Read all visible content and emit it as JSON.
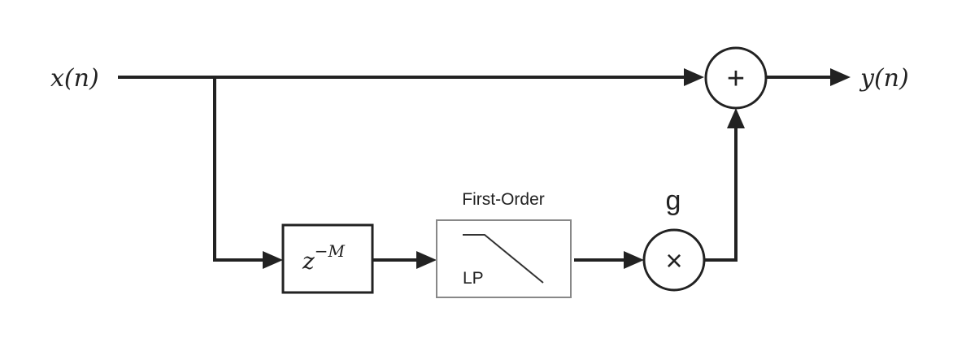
{
  "input": {
    "label": "x(n)"
  },
  "output": {
    "label": "y(n)"
  },
  "delay": {
    "label_base": "z",
    "label_exp": "−M"
  },
  "filter": {
    "title": "First-Order",
    "label": "LP"
  },
  "gain": {
    "label": "g"
  },
  "adder": {
    "symbol": "+"
  },
  "multiplier": {
    "symbol": "×"
  }
}
